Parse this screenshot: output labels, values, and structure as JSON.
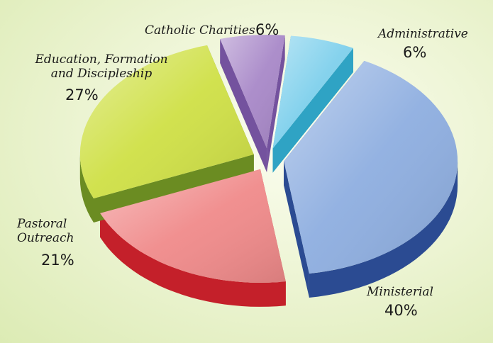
{
  "chart_data": {
    "type": "pie",
    "style": "3d-exploded",
    "slices": [
      {
        "name": "Administrative",
        "value": 6,
        "label": "Administrative",
        "pct": "6%",
        "top": "#7fd0ec",
        "side": "#2fa3c4"
      },
      {
        "name": "Ministerial",
        "value": 40,
        "label": "Ministerial",
        "pct": "40%",
        "top": "#8eaee0",
        "side": "#2b4b92"
      },
      {
        "name": "Pastoral Outreach",
        "value": 21,
        "label": "Pastoral Outreach",
        "pct": "21%",
        "top": "#f08a8a",
        "side": "#c4202a"
      },
      {
        "name": "Education, Formation and Discipleship",
        "value": 27,
        "label": "Education, Formation and Discipleship",
        "pct": "27%",
        "top": "#cfe046",
        "side": "#6b8c22"
      },
      {
        "name": "Catholic Charities",
        "value": 6,
        "label": "Catholic Charities",
        "pct": "6%",
        "top": "#a888c8",
        "side": "#74529e"
      }
    ]
  }
}
